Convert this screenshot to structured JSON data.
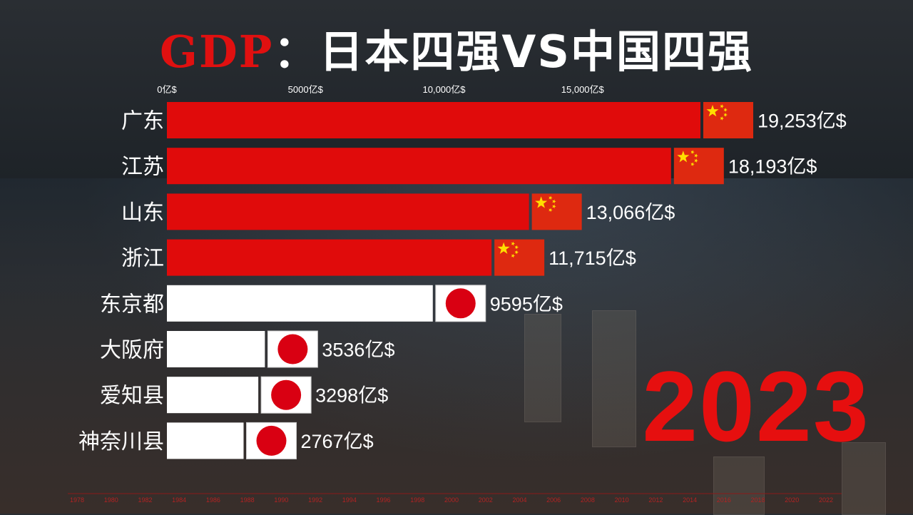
{
  "title": {
    "prefix": "GDP",
    "separator": "：",
    "main": "日本四强VS中国四强"
  },
  "year": "2023",
  "colors": {
    "china": "#e00b0b",
    "japan": "#ffffff",
    "japan_flag_disc": "#d90012",
    "china_flag": "#de2910",
    "star": "#ffde00",
    "year": "#e60f0f"
  },
  "chart_data": {
    "type": "bar",
    "orientation": "horizontal",
    "unit": "亿$",
    "xlim": [
      0,
      19253
    ],
    "ticks": [
      {
        "value": 0,
        "label": "0亿$"
      },
      {
        "value": 5000,
        "label": "5000亿$"
      },
      {
        "value": 10000,
        "label": "10,000亿$"
      },
      {
        "value": 15000,
        "label": "15,000亿$"
      }
    ],
    "bars": [
      {
        "category": "广东",
        "value": 19253,
        "label": "19,253亿$",
        "country": "china"
      },
      {
        "category": "江苏",
        "value": 18193,
        "label": "18,193亿$",
        "country": "china"
      },
      {
        "category": "山东",
        "value": 13066,
        "label": "13,066亿$",
        "country": "china"
      },
      {
        "category": "浙江",
        "value": 11715,
        "label": "11,715亿$",
        "country": "china"
      },
      {
        "category": "东京都",
        "value": 9595,
        "label": "9595亿$",
        "country": "japan"
      },
      {
        "category": "大阪府",
        "value": 3536,
        "label": "3536亿$",
        "country": "japan"
      },
      {
        "category": "爱知县",
        "value": 3298,
        "label": "3298亿$",
        "country": "japan"
      },
      {
        "category": "神奈川县",
        "value": 2767,
        "label": "2767亿$",
        "country": "japan"
      }
    ],
    "timeline": [
      "1978",
      "1980",
      "1982",
      "1984",
      "1986",
      "1988",
      "1990",
      "1992",
      "1994",
      "1996",
      "1998",
      "2000",
      "2002",
      "2004",
      "2006",
      "2008",
      "2010",
      "2012",
      "2014",
      "2016",
      "2018",
      "2020",
      "2022"
    ]
  }
}
